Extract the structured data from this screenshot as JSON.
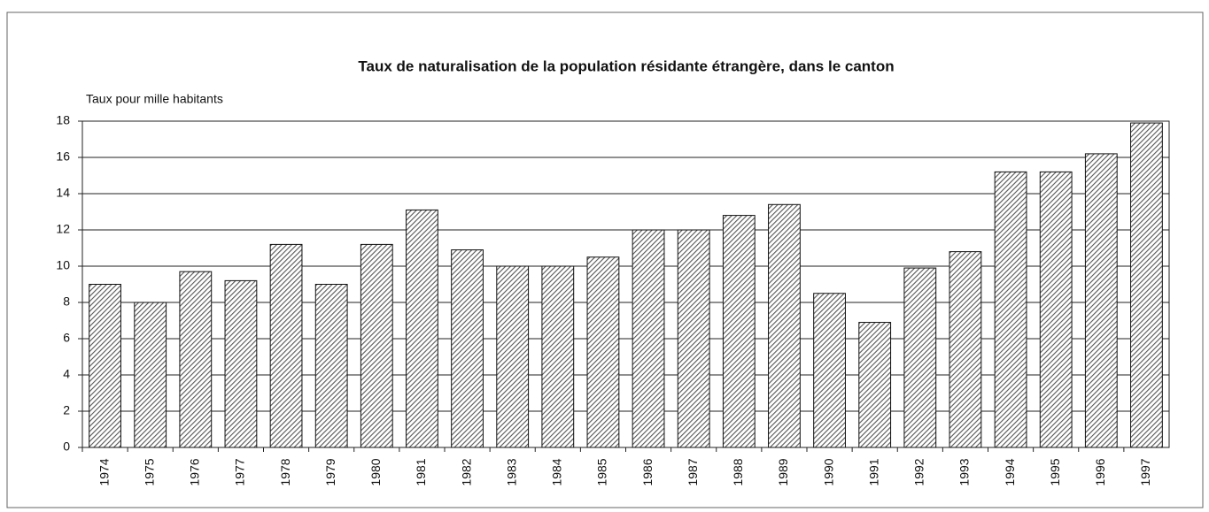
{
  "chart_data": {
    "type": "bar",
    "title": "Taux de naturalisation de la population résidante étrangère, dans le canton",
    "y_label": "Taux pour mille habitants",
    "categories": [
      "1974",
      "1975",
      "1976",
      "1977",
      "1978",
      "1979",
      "1980",
      "1981",
      "1982",
      "1983",
      "1984",
      "1985",
      "1986",
      "1987",
      "1988",
      "1989",
      "1990",
      "1991",
      "1992",
      "1993",
      "1994",
      "1995",
      "1996",
      "1997"
    ],
    "values": [
      9.0,
      8.0,
      9.7,
      9.2,
      11.2,
      9.0,
      11.2,
      13.1,
      10.9,
      10.0,
      10.0,
      10.5,
      12.0,
      12.0,
      12.8,
      13.4,
      8.5,
      6.9,
      9.9,
      10.8,
      15.2,
      15.2,
      16.2,
      17.9
    ],
    "color": "#555555",
    "ylim": [
      0,
      18
    ],
    "yticks": [
      0,
      2,
      4,
      6,
      8,
      10,
      12,
      14,
      16,
      18
    ],
    "grid": true
  }
}
